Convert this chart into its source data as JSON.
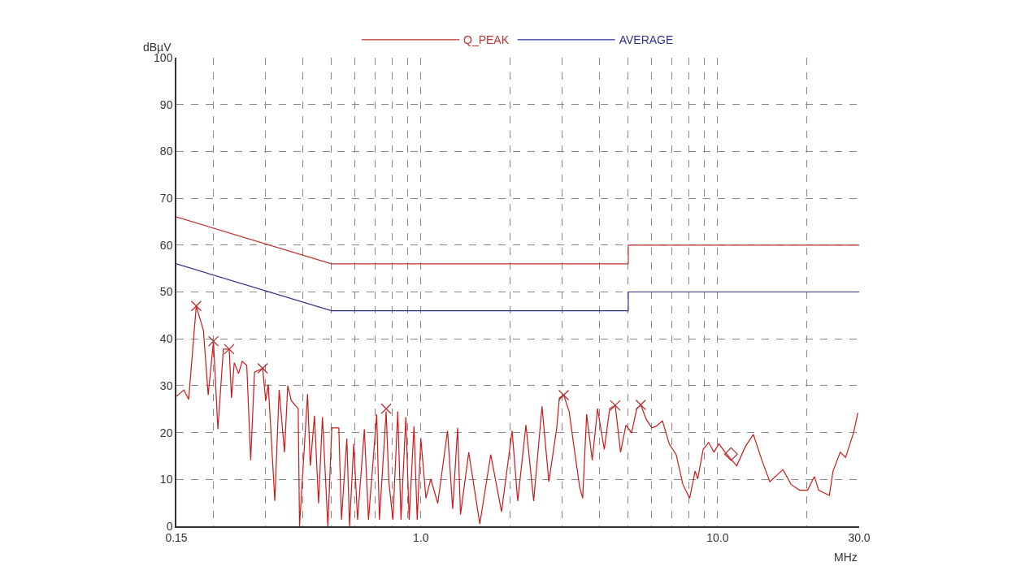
{
  "chart_data": {
    "type": "line",
    "ylabel": "dBµV",
    "xlabel": "MHz",
    "log": "x",
    "grid": true,
    "legend": "top",
    "xlim": [
      0.15,
      30
    ],
    "ylim": [
      0,
      100
    ],
    "xticks": [
      0.15,
      {
        "value": 0.2,
        "label": null
      },
      {
        "value": 0.3,
        "label": null
      },
      {
        "value": 0.4,
        "label": null
      },
      {
        "value": 0.5,
        "label": null
      },
      {
        "value": 0.6,
        "label": null
      },
      {
        "value": 0.7,
        "label": null
      },
      {
        "value": 0.8,
        "label": null
      },
      {
        "value": 0.9,
        "label": null
      },
      {
        "value": 1,
        "label": "1.0"
      },
      {
        "value": 2,
        "label": null
      },
      {
        "value": 3,
        "label": null
      },
      {
        "value": 4,
        "label": null
      },
      {
        "value": 5,
        "label": null
      },
      {
        "value": 6,
        "label": null
      },
      {
        "value": 7,
        "label": null
      },
      {
        "value": 8,
        "label": null
      },
      {
        "value": 9,
        "label": null
      },
      {
        "value": 10,
        "label": "10.0"
      },
      {
        "value": 20,
        "label": null
      },
      {
        "value": 30,
        "label": "30.0"
      }
    ],
    "yticks": [
      0,
      10,
      20,
      30,
      40,
      50,
      60,
      70,
      80,
      90,
      100
    ],
    "series": [
      {
        "name": "Q_PEAK",
        "color": "#c03030",
        "x": [
          0.15,
          0.5,
          5,
          5,
          30
        ],
        "values": [
          66,
          56,
          56,
          60,
          60
        ]
      },
      {
        "name": "AVERAGE",
        "color": "#303090",
        "x": [
          0.15,
          0.5,
          5,
          5,
          30
        ],
        "values": [
          56,
          46,
          46,
          50,
          50
        ]
      },
      {
        "color": "#d01818",
        "x": [
          0.15,
          0.159,
          0.165,
          0.168,
          0.175,
          0.185,
          0.192,
          0.2,
          0.207,
          0.216,
          0.226,
          0.23,
          0.235,
          0.243,
          0.25,
          0.259,
          0.267,
          0.275,
          0.293,
          0.3,
          0.306,
          0.322,
          0.333,
          0.347,
          0.356,
          0.366,
          0.386,
          0.39,
          0.415,
          0.424,
          0.438,
          0.452,
          0.466,
          0.486,
          0.501,
          0.529,
          0.54,
          0.563,
          0.575,
          0.594,
          0.612,
          0.645,
          0.666,
          0.71,
          0.725,
          0.764,
          0.78,
          0.805,
          0.836,
          0.857,
          0.89,
          0.913,
          0.948,
          0.972,
          1.0,
          1.04,
          1.08,
          1.14,
          1.23,
          1.28,
          1.33,
          1.36,
          1.45,
          1.58,
          1.72,
          1.87,
          2.03,
          2.12,
          2.26,
          2.4,
          2.56,
          2.7,
          2.87,
          2.93,
          3.03,
          3.16,
          3.29,
          3.43,
          3.51,
          3.62,
          3.78,
          3.94,
          4.15,
          4.33,
          4.52,
          4.71,
          4.91,
          5.13,
          5.34,
          5.51,
          5.75,
          6.0,
          6.19,
          6.52,
          6.87,
          7.25,
          7.64,
          8.05,
          8.4,
          8.57,
          8.94,
          9.33,
          9.72,
          10.1,
          10.6,
          11.6,
          12.4,
          13.2,
          14.1,
          15.0,
          16.6,
          17.7,
          18.9,
          20.1,
          21.2,
          21.9,
          23.8,
          24.5,
          25.9,
          27.0,
          28.7,
          29.7
        ],
        "values": [
          27.7,
          29.1,
          27.1,
          33.2,
          47.0,
          41.8,
          28.0,
          39.5,
          20.7,
          37.8,
          37.8,
          27.4,
          34.9,
          32.6,
          35.2,
          34.3,
          14.1,
          32.9,
          33.7,
          26.8,
          30.3,
          5.4,
          29.1,
          15.8,
          30.0,
          26.8,
          25.1,
          0,
          28.2,
          12.9,
          23.6,
          4.9,
          23.3,
          0,
          21.0,
          21.0,
          1.4,
          18.7,
          0,
          17.6,
          1.4,
          20.7,
          1.4,
          23.9,
          1.4,
          24.5,
          9.5,
          1.4,
          24.5,
          1.4,
          23.3,
          1.4,
          21.3,
          1.4,
          18.7,
          6.0,
          10.1,
          4.9,
          20.4,
          3.7,
          21.0,
          2.5,
          15.8,
          0.5,
          15.3,
          3.1,
          20.4,
          5.4,
          21.6,
          5.4,
          25.6,
          9.5,
          21.0,
          27.4,
          28.0,
          24.5,
          16.4,
          8.3,
          6.0,
          23.9,
          14.1,
          25.1,
          16.4,
          25.1,
          25.8,
          15.8,
          21.6,
          19.9,
          25.1,
          25.9,
          22.8,
          21.0,
          21.3,
          22.5,
          17.6,
          15.3,
          8.9,
          6.0,
          11.8,
          10.1,
          16.4,
          17.9,
          15.8,
          17.6,
          15.8,
          12.9,
          17.0,
          19.6,
          14.1,
          9.5,
          12.1,
          8.9,
          7.7,
          7.7,
          10.6,
          7.7,
          6.6,
          11.8,
          15.8,
          14.7,
          19.9,
          24.2
        ]
      },
      {
        "type": "scatter",
        "marker": "cross",
        "color": "#b03030",
        "x": [
          0.175,
          0.2,
          0.226,
          0.293,
          0.764,
          3.03,
          4.52,
          5.51
        ],
        "values": [
          47.0,
          39.5,
          37.8,
          33.7,
          25.1,
          28.0,
          25.8,
          25.9
        ]
      },
      {
        "type": "scatter",
        "marker": "diamond",
        "color": "#b03030",
        "x": [
          11.1
        ],
        "values": [
          15.4
        ]
      }
    ]
  }
}
